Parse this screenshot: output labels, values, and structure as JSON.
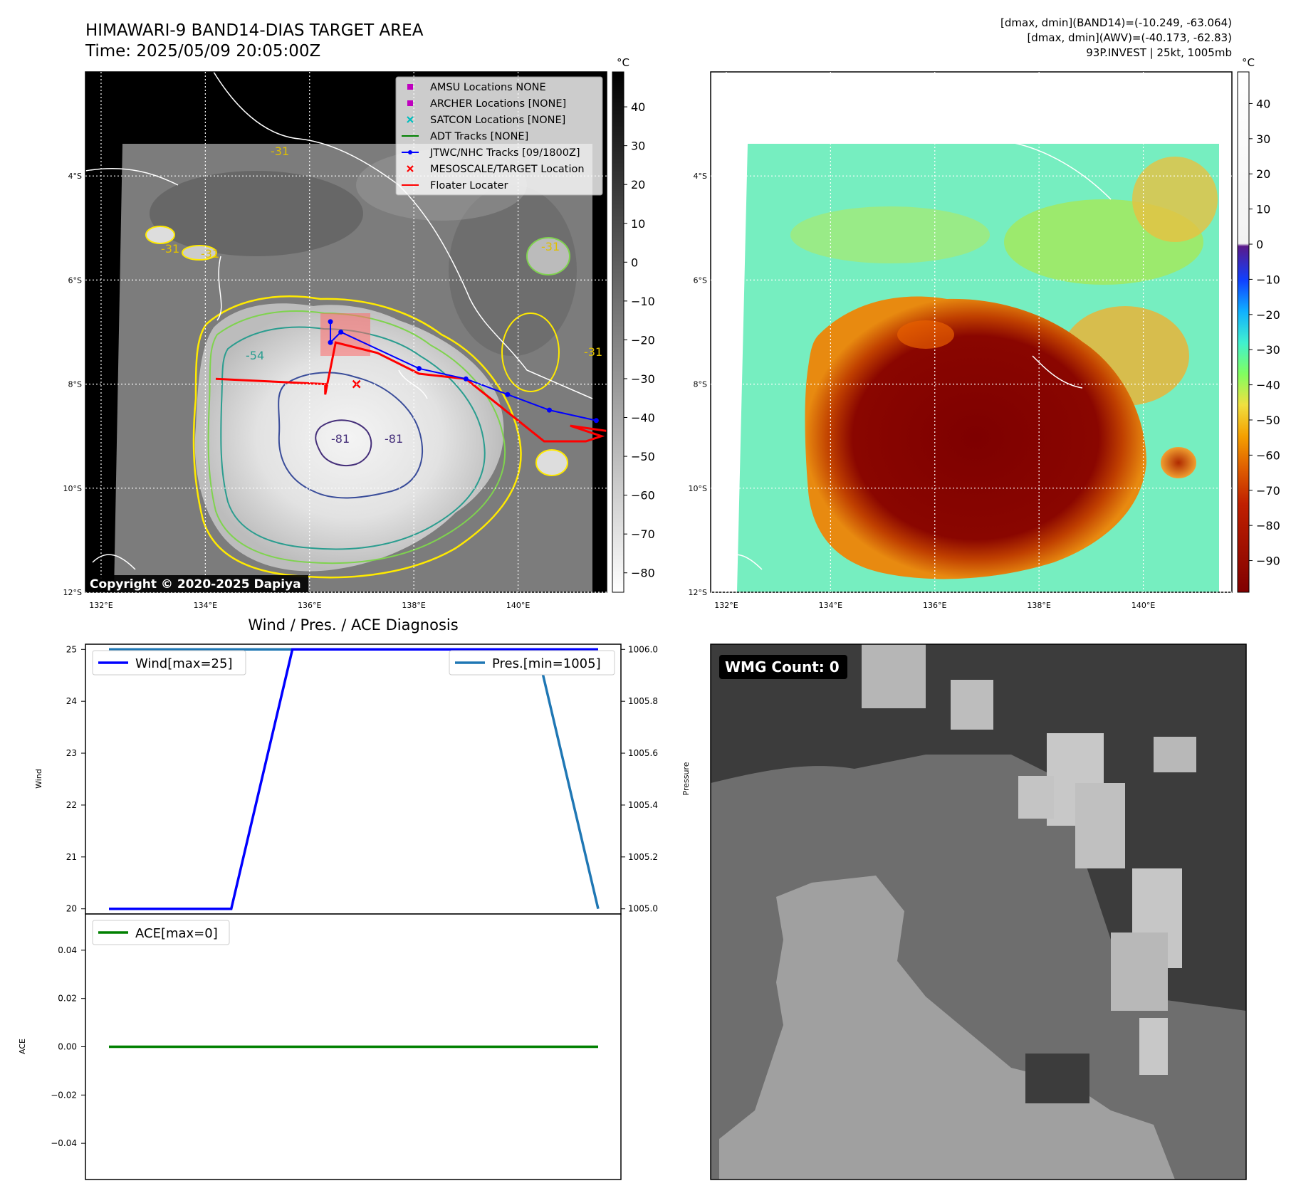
{
  "header": {
    "title_line1": "HIMAWARI-9 BAND14-DIAS TARGET AREA",
    "title_line2": "Time: 2025/05/09 20:05:00Z",
    "info_line1": "[dmax, dmin](BAND14)=(-10.249, -63.064)",
    "info_line2": "[dmax, dmin](AWV)=(-40.173, -62.83)",
    "info_line3": "93P.INVEST | 25kt, 1005mb"
  },
  "colorbar_unit": "°C",
  "copyright": "Copyright © 2020-2025 Dapiya",
  "wmg_label": "WMG Count: 0",
  "diagnosis_title": "Wind / Pres. / ACE Diagnosis",
  "colors": {
    "map_background": "#000000",
    "jtwc_track": "#0000ff",
    "floater": "#ff0000",
    "adt": "#008000",
    "amsu_archer": "#bf00bf",
    "satcon": "#00bfbf",
    "wind_line": "#0000ff",
    "pressure_line": "#1f77b4",
    "ace_line": "#008000",
    "contour_colors": [
      "#ffea00",
      "#7fd34e",
      "#2a9d8f",
      "#3a4d9a",
      "#46307a"
    ]
  },
  "chart_data": [
    {
      "type": "heatmap",
      "title": "HIMAWARI-9 BAND14-DIAS TARGET AREA",
      "subtitle": "Time: 2025/05/09 20:05:00Z",
      "x_ticks": [
        "132°E",
        "134°E",
        "136°E",
        "138°E",
        "140°E"
      ],
      "y_ticks": [
        "4°S",
        "6°S",
        "8°S",
        "10°S",
        "12°S"
      ],
      "x_range": [
        131.7,
        141.7
      ],
      "y_range": [
        -12.0,
        -2.0
      ],
      "grid": true,
      "colorbar": {
        "unit": "°C",
        "ticks": [
          40,
          30,
          20,
          10,
          0,
          -10,
          -20,
          -30,
          -40,
          -50,
          -60,
          -70,
          -80
        ],
        "range": [
          -85,
          49
        ],
        "colormap": "grayscale"
      },
      "contour_labels": [
        "-31",
        "-31",
        "-31",
        "-31",
        "-54",
        "-81",
        "-81",
        "-31"
      ],
      "legend": {
        "placement": "top-right",
        "entries": [
          {
            "label": "AMSU Locations NONE",
            "marker": "square",
            "color": "#bf00bf"
          },
          {
            "label": "ARCHER Locations [NONE]",
            "marker": "square",
            "color": "#bf00bf"
          },
          {
            "label": "SATCON Locations [NONE]",
            "marker": "x",
            "color": "#00bfbf"
          },
          {
            "label": "ADT Tracks [NONE]",
            "marker": "line",
            "color": "#008000"
          },
          {
            "label": "JTWC/NHC Tracks [09/1800Z]",
            "marker": "line-dot",
            "color": "#0000ff"
          },
          {
            "label": "MESOSCALE/TARGET Location",
            "marker": "x",
            "color": "#ff0000"
          },
          {
            "label": "Floater Locater",
            "marker": "line",
            "color": "#ff0000"
          }
        ]
      },
      "jtwc_track": {
        "lon": [
          136.4,
          136.4,
          136.6,
          138.1,
          139.0,
          139.8,
          140.6,
          141.5
        ],
        "lat": [
          -6.8,
          -7.2,
          -7.0,
          -7.7,
          -7.9,
          -8.2,
          -8.5,
          -8.7
        ]
      },
      "target_location": {
        "lon": 136.9,
        "lat": -8.0
      },
      "floater_track": {
        "lon": [
          134.2,
          136.3,
          136.3,
          136.5,
          137.3,
          138.1,
          139.0,
          140.5,
          141.3,
          141.6,
          141.0,
          141.7
        ],
        "lat": [
          -7.9,
          -8.0,
          -8.2,
          -7.2,
          -7.4,
          -7.8,
          -7.9,
          -9.1,
          -9.1,
          -9.0,
          -8.8,
          -8.9
        ]
      }
    },
    {
      "type": "heatmap",
      "title": "",
      "x_ticks": [
        "132°E",
        "134°E",
        "136°E",
        "138°E",
        "140°E"
      ],
      "y_ticks": [
        "4°S",
        "6°S",
        "8°S",
        "10°S",
        "12°S"
      ],
      "x_range": [
        131.7,
        141.7
      ],
      "y_range": [
        -12.0,
        -2.0
      ],
      "grid": true,
      "colorbar": {
        "unit": "°C",
        "ticks": [
          40,
          30,
          20,
          10,
          0,
          -10,
          -20,
          -30,
          -40,
          -50,
          -60,
          -70,
          -80,
          -90
        ],
        "range": [
          -99,
          49
        ],
        "colormap": "white-above-0, jet/rainbow below 0"
      }
    },
    {
      "type": "line",
      "title": "Wind / Pres. / ACE Diagnosis",
      "x": [
        0,
        1,
        2,
        3,
        4,
        5,
        6,
        7,
        8
      ],
      "series": [
        {
          "name": "Wind[max=25]",
          "axis": "left",
          "values": [
            20,
            20,
            20,
            25,
            25,
            25,
            25,
            25,
            25
          ]
        },
        {
          "name": "Pres.[min=1005]",
          "axis": "right",
          "values": [
            1006,
            1006,
            1006,
            1006,
            1006,
            1006,
            1006,
            1006,
            1005
          ]
        }
      ],
      "ylabel": "Wind",
      "ylabel_right": "Pressure",
      "ylim": [
        19.9,
        25.1
      ],
      "ylim_right": [
        1004.98,
        1006.02
      ],
      "y_ticks": [
        25,
        24,
        23,
        22,
        21,
        20
      ],
      "y_ticks_right": [
        "1006.0",
        "1005.8",
        "1005.6",
        "1005.4",
        "1005.2",
        "1005.0"
      ],
      "legend": "upper-left and upper-right"
    },
    {
      "type": "line",
      "x": [
        0,
        1,
        2,
        3,
        4,
        5,
        6,
        7,
        8
      ],
      "series": [
        {
          "name": "ACE[max=0]",
          "values": [
            0,
            0,
            0,
            0,
            0,
            0,
            0,
            0,
            0
          ]
        }
      ],
      "ylabel": "ACE",
      "ylim": [
        -0.055,
        0.055
      ],
      "y_ticks": [
        "0.04",
        "0.02",
        "0.00",
        "−0.02",
        "−0.04"
      ],
      "legend": "upper-left"
    },
    {
      "type": "heatmap",
      "label": "WMG Count: 0",
      "colormap": "gray levels"
    }
  ]
}
